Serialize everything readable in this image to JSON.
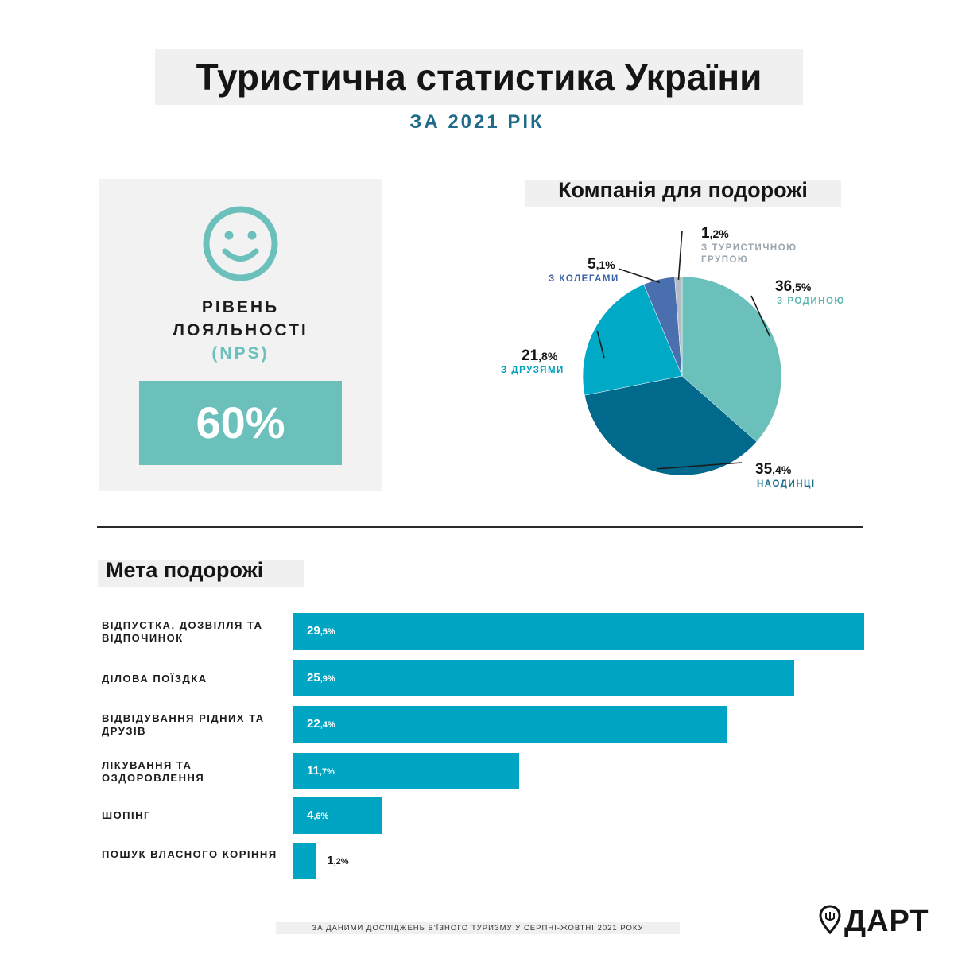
{
  "header": {
    "title": "Туристична статистика України",
    "subtitle": "ЗА 2021 РІК"
  },
  "nps": {
    "icon": "smiley-face-icon",
    "label_line1": "РІВЕНЬ",
    "label_line2": "ЛОЯЛЬНОСТІ",
    "label_line3": "(NPS)",
    "value": "60%",
    "color": "#6bc0bb"
  },
  "companion": {
    "title": "Компанія для подорожі",
    "labels": [
      {
        "int": "36",
        "dec": ",5%",
        "cat": "З РОДИНОЮ"
      },
      {
        "int": "35",
        "dec": ",4%",
        "cat": "НАОДИНЦІ"
      },
      {
        "int": "21",
        "dec": ",8%",
        "cat": "З ДРУЗЯМИ"
      },
      {
        "int": "5",
        "dec": ",1%",
        "cat": "З КОЛЕГАМИ"
      },
      {
        "int": "1",
        "dec": ",2%",
        "cat_line1": "З ТУРИСТИЧНОЮ",
        "cat_line2": "ГРУПОЮ"
      }
    ]
  },
  "purpose": {
    "title": "Мета подорожі",
    "rows": [
      {
        "label": "ВІДПУСТКА, ДОЗВІЛЛЯ ТА ВІДПОЧИНОК",
        "int": "29",
        "dec": ",5%"
      },
      {
        "label": "ДІЛОВА ПОЇЗДКА",
        "int": "25",
        "dec": ",9%"
      },
      {
        "label": "ВІДВІДУВАННЯ РІДНИХ ТА ДРУЗІВ",
        "int": "22",
        "dec": ",4%"
      },
      {
        "label": "ЛІКУВАННЯ ТА ОЗДОРОВЛЕННЯ",
        "int": "11",
        "dec": ",7%"
      },
      {
        "label": "ШОПІНГ",
        "int": "4",
        "dec": ",6%"
      },
      {
        "label": "ПОШУК ВЛАСНОГО КОРІННЯ",
        "int": "1",
        "dec": ",2%"
      }
    ]
  },
  "chart_data": [
    {
      "type": "pie",
      "title": "Компанія для подорожі",
      "categories": [
        "З РОДИНОЮ",
        "НАОДИНЦІ",
        "З ДРУЗЯМИ",
        "З КОЛЕГАМИ",
        "З ТУРИСТИЧНОЮ ГРУПОЮ"
      ],
      "values": [
        36.5,
        35.4,
        21.8,
        5.1,
        1.2
      ],
      "colors": [
        "#6bc0bb",
        "#00698c",
        "#00a9c6",
        "#4a6fae",
        "#b3bcc4"
      ],
      "label_colors": [
        "#5fb8b3",
        "#1a6e8e",
        "#00a0bd",
        "#3b61a6",
        "#9aa6b0"
      ]
    },
    {
      "type": "bar",
      "orientation": "horizontal",
      "title": "Мета подорожі",
      "categories": [
        "ВІДПУСТКА, ДОЗВІЛЛЯ ТА ВІДПОЧИНОК",
        "ДІЛОВА ПОЇЗДКА",
        "ВІДВІДУВАННЯ РІДНИХ ТА ДРУЗІВ",
        "ЛІКУВАННЯ ТА ОЗДОРОВЛЕННЯ",
        "ШОПІНГ",
        "ПОШУК ВЛАСНОГО КОРІННЯ"
      ],
      "values": [
        29.5,
        25.9,
        22.4,
        11.7,
        4.6,
        1.2
      ],
      "color": "#00a5c3"
    }
  ],
  "footer": {
    "source": "ЗА ДАНИМИ ДОСЛІДЖЕНЬ В'ЇЗНОГО ТУРИЗМУ У СЕРПНІ-ЖОВТНІ 2021 РОКУ",
    "logo_text": "ДАРТ",
    "logo_icon": "location-pin-trident-icon"
  }
}
